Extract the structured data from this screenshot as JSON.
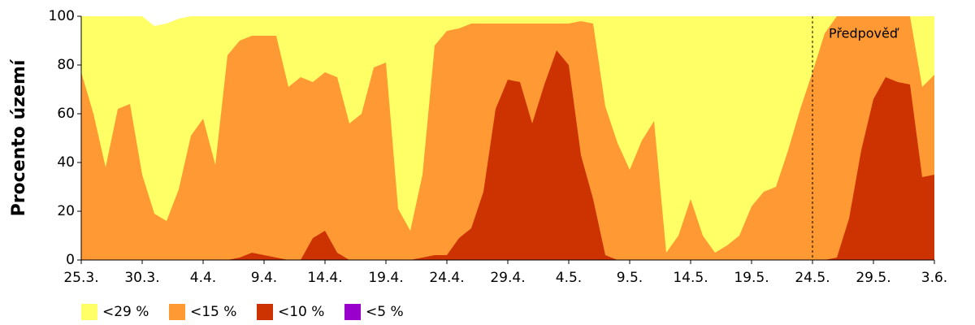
{
  "chart_data": {
    "type": "area",
    "ylabel": "Procento území",
    "categories": [
      "25.3.",
      null,
      null,
      null,
      null,
      "30.3.",
      null,
      null,
      null,
      null,
      "4.4.",
      null,
      null,
      null,
      null,
      "9.4.",
      null,
      null,
      null,
      null,
      "14.4.",
      null,
      null,
      null,
      null,
      "19.4.",
      null,
      null,
      null,
      null,
      "24.4.",
      null,
      null,
      null,
      null,
      "29.4.",
      null,
      null,
      null,
      null,
      "4.5.",
      null,
      null,
      null,
      null,
      "9.5.",
      null,
      null,
      null,
      null,
      "14.5.",
      null,
      null,
      null,
      null,
      "19.5.",
      null,
      null,
      null,
      null,
      "24.5.",
      null,
      null,
      null,
      null,
      "29.5.",
      null,
      null,
      null,
      null,
      "3.6."
    ],
    "series": [
      {
        "name": "<29 %",
        "color": "#ffff66",
        "values": [
          100,
          100,
          100,
          100,
          100,
          100,
          96,
          97,
          99,
          100,
          100,
          100,
          100,
          100,
          100,
          100,
          100,
          100,
          100,
          100,
          100,
          100,
          100,
          100,
          100,
          100,
          100,
          100,
          100,
          100,
          100,
          100,
          100,
          100,
          100,
          100,
          100,
          100,
          100,
          100,
          100,
          100,
          100,
          100,
          100,
          100,
          100,
          100,
          100,
          100,
          100,
          100,
          100,
          100,
          100,
          100,
          100,
          100,
          100,
          100,
          100,
          100,
          100,
          100,
          100,
          100,
          100,
          100,
          100,
          100,
          100
        ]
      },
      {
        "name": "<15 %",
        "color": "#ff9933",
        "values": [
          77,
          60,
          38,
          62,
          64,
          35,
          19,
          16,
          29,
          51,
          58,
          39,
          84,
          90,
          92,
          92,
          92,
          71,
          75,
          73,
          77,
          75,
          56,
          60,
          79,
          81,
          21,
          12,
          35,
          88,
          94,
          95,
          97,
          97,
          97,
          97,
          97,
          97,
          97,
          97,
          97,
          98,
          97,
          63,
          48,
          37,
          49,
          57,
          3,
          10,
          25,
          10,
          3,
          6,
          10,
          22,
          28,
          30,
          45,
          62,
          77,
          93,
          100,
          100,
          100,
          100,
          100,
          100,
          100,
          71,
          76
        ]
      },
      {
        "name": "<10 %",
        "color": "#cc3300",
        "values": [
          0,
          0,
          0,
          0,
          0,
          0,
          0,
          0,
          0,
          0,
          0,
          0,
          0,
          1,
          3,
          2,
          1,
          0,
          0,
          9,
          12,
          3,
          0,
          0,
          0,
          0,
          0,
          0,
          1,
          2,
          2,
          9,
          13,
          28,
          62,
          74,
          73,
          56,
          72,
          86,
          80,
          43,
          25,
          2,
          0,
          0,
          0,
          0,
          0,
          0,
          0,
          0,
          0,
          0,
          0,
          0,
          0,
          0,
          0,
          0,
          0,
          0,
          1,
          17,
          45,
          66,
          75,
          73,
          72,
          34,
          35
        ]
      },
      {
        "name": "<5 %",
        "color": "#9900cc",
        "values": [
          0,
          0,
          0,
          0,
          0,
          0,
          0,
          0,
          0,
          0,
          0,
          0,
          0,
          0,
          0,
          0,
          0,
          0,
          0,
          0,
          0,
          0,
          0,
          0,
          0,
          0,
          0,
          0,
          0,
          0,
          0,
          0,
          0,
          0,
          0,
          0,
          0,
          0,
          0,
          0,
          0,
          0,
          0,
          0,
          0,
          0,
          0,
          0,
          0,
          0,
          0,
          0,
          0,
          0,
          0,
          0,
          0,
          0,
          0,
          0,
          0,
          0,
          0,
          0,
          0,
          0,
          0,
          0,
          0,
          0,
          0
        ]
      }
    ],
    "ylim": [
      0,
      100
    ],
    "yticks": [
      0,
      20,
      40,
      60,
      80,
      100
    ],
    "annotations": [
      {
        "text": "Předpověď",
        "x": "24.5."
      }
    ]
  }
}
